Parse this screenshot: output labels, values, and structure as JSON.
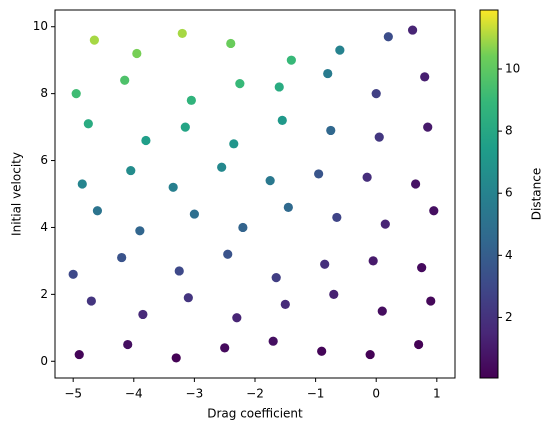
{
  "chart_data": {
    "type": "scatter",
    "xlabel": "Drag coefficient",
    "ylabel": "Initial velocity",
    "colorbar_label": "Distance",
    "colormap": "viridis",
    "x": [
      -4.9,
      -4.7,
      -5.0,
      -4.6,
      -4.85,
      -4.75,
      -4.95,
      -4.65,
      -4.1,
      -3.85,
      -4.2,
      -3.9,
      -4.05,
      -3.8,
      -4.15,
      -3.95,
      -3.3,
      -3.1,
      -3.25,
      -3.0,
      -3.35,
      -3.15,
      -3.05,
      -3.2,
      -2.5,
      -2.3,
      -2.45,
      -2.2,
      -2.55,
      -2.35,
      -2.25,
      -2.4,
      -1.7,
      -1.5,
      -1.65,
      -1.45,
      -1.75,
      -1.55,
      -1.6,
      -1.4,
      -0.9,
      -0.7,
      -0.85,
      -0.65,
      -0.95,
      -0.75,
      -0.8,
      -0.6,
      -0.1,
      0.1,
      -0.05,
      0.15,
      -0.15,
      0.05,
      0.0,
      0.2,
      0.7,
      0.9,
      0.75,
      0.95,
      0.65,
      0.85,
      0.8,
      0.6
    ],
    "values": [
      0.2,
      1.8,
      2.6,
      4.5,
      5.3,
      7.1,
      8.0,
      9.6,
      0.5,
      1.4,
      3.1,
      3.9,
      5.7,
      6.6,
      8.4,
      9.2,
      0.1,
      1.9,
      2.7,
      4.4,
      5.2,
      7.0,
      7.8,
      9.8,
      0.4,
      1.3,
      3.2,
      4.0,
      5.8,
      6.5,
      8.3,
      9.5,
      0.6,
      1.7,
      2.5,
      4.6,
      5.4,
      7.2,
      8.2,
      9.0,
      0.3,
      2.0,
      2.9,
      4.3,
      5.6,
      6.9,
      8.6,
      9.3,
      0.2,
      1.5,
      3.0,
      4.1,
      5.5,
      6.7,
      8.0,
      9.7,
      0.5,
      1.8,
      2.8,
      4.5,
      5.3,
      7.0,
      8.5,
      9.9
    ],
    "color_values": [
      0.2,
      2.1,
      3.0,
      5.2,
      6.1,
      8.2,
      9.2,
      11.0,
      0.6,
      1.6,
      3.5,
      4.4,
      6.5,
      7.5,
      9.6,
      10.5,
      0.1,
      2.1,
      3.0,
      4.9,
      5.8,
      7.8,
      8.7,
      11.0,
      0.4,
      1.4,
      3.5,
      4.3,
      6.3,
      7.0,
      9.0,
      10.3,
      0.6,
      1.7,
      2.5,
      4.6,
      5.4,
      7.2,
      8.2,
      9.0,
      0.2,
      1.3,
      1.9,
      2.8,
      3.6,
      4.5,
      5.6,
      6.0,
      0.1,
      0.5,
      1.0,
      1.4,
      1.8,
      2.2,
      2.6,
      3.2,
      0.1,
      0.3,
      0.4,
      0.6,
      0.7,
      1.0,
      1.2,
      1.4
    ],
    "xlim": [
      -5.3,
      1.3
    ],
    "xticks": [
      {
        "value": -5,
        "label": "−5"
      },
      {
        "value": -4,
        "label": "−4"
      },
      {
        "value": -3,
        "label": "−3"
      },
      {
        "value": -2,
        "label": "−2"
      },
      {
        "value": -1,
        "label": "−1"
      },
      0,
      1
    ],
    "ylim": [
      -0.5,
      10.5
    ],
    "yticks": [
      0,
      2,
      4,
      6,
      8,
      10
    ],
    "clim": [
      0.05,
      11.9
    ],
    "cticks": [
      2,
      4,
      6,
      8,
      10
    ]
  }
}
